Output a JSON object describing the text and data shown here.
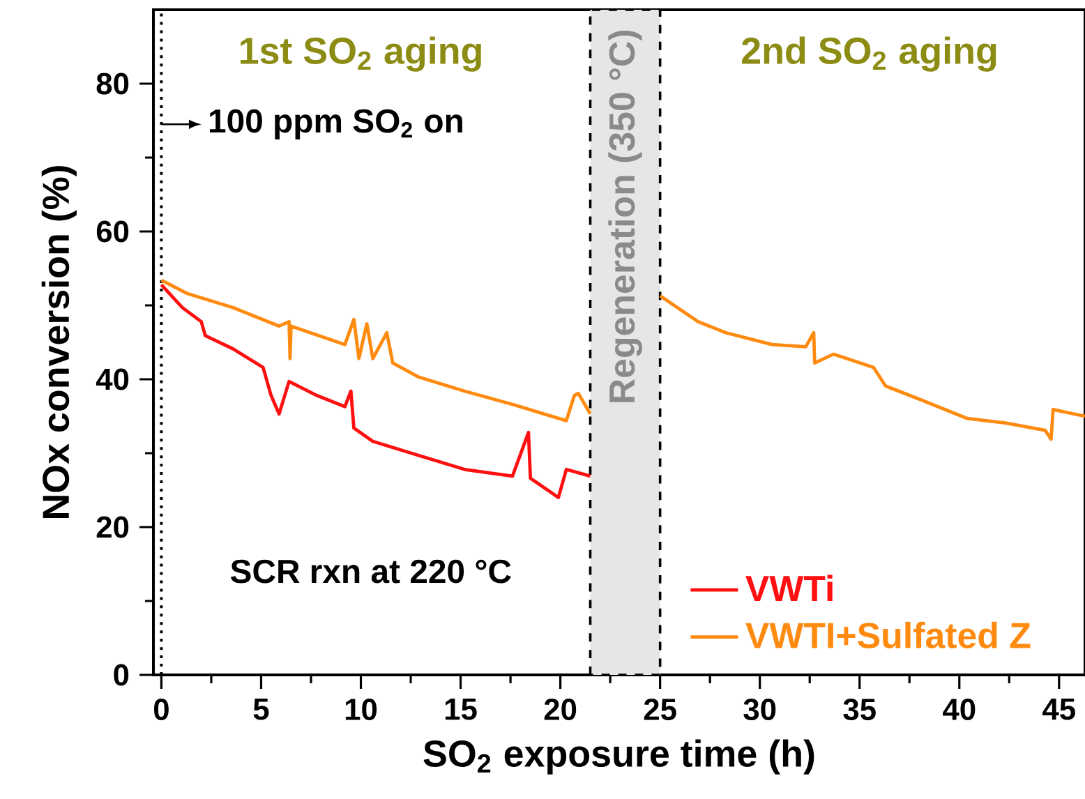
{
  "chart_data": {
    "type": "line",
    "xlabel": "SO$_{2}$ exposure time (h)",
    "ylabel": "NOx conversion (%)",
    "xlim": [
      -0.4,
      46.3
    ],
    "ylim": [
      0,
      90
    ],
    "xticks": [
      0,
      5,
      10,
      15,
      20,
      25,
      30,
      35,
      40,
      45
    ],
    "yticks": [
      0,
      20,
      40,
      60,
      80
    ],
    "marker": "none",
    "legend": "bottom right",
    "series": [
      {
        "name": "VWTi",
        "color": "#ff1010",
        "x": [
          0,
          1.05,
          2.0,
          2.2,
          3.6,
          5.1,
          5.5,
          5.9,
          6.4,
          7.8,
          9.2,
          9.5,
          9.65,
          10.6,
          12.9,
          15.2,
          17.6,
          18.4,
          18.5,
          19.9,
          20.3,
          21.5
        ],
        "values": [
          52.8,
          49.7,
          47.8,
          45.9,
          44.1,
          41.6,
          37.8,
          35.3,
          39.7,
          37.8,
          36.3,
          38.4,
          33.4,
          31.6,
          29.7,
          27.8,
          26.9,
          32.8,
          26.6,
          24,
          27.8,
          26.9
        ]
      },
      {
        "name": "VWTI+Sulfated Z",
        "color": "#ff8a10",
        "x": [
          0,
          1.3,
          3.6,
          5.9,
          6.4,
          6.45,
          6.5,
          9.2,
          9.65,
          9.9,
          10.3,
          10.6,
          11.3,
          11.6,
          12.9,
          15.2,
          17.6,
          20.3,
          20.7,
          20.9,
          21.5,
          23.25,
          25.0,
          26.9,
          28.3,
          30.6,
          32.3,
          32.7,
          32.75,
          33.7,
          35.7,
          36.3,
          38.1,
          40.4,
          42.3,
          44.3,
          44.6,
          44.7,
          46.3
        ],
        "values": [
          53.4,
          51.6,
          49.7,
          47.2,
          47.8,
          42.8,
          47.2,
          44.7,
          48.1,
          42.8,
          47.5,
          42.8,
          46.3,
          42.2,
          40.3,
          38.4,
          36.6,
          34.4,
          37.8,
          38.1,
          35.3,
          null,
          51.3,
          47.8,
          46.3,
          44.7,
          44.4,
          46.3,
          42.2,
          43.4,
          41.6,
          39.1,
          37.2,
          34.7,
          34.1,
          33.1,
          31.9,
          35.9,
          35.0
        ]
      }
    ],
    "bands": [
      {
        "axis": "x",
        "from": 21.5,
        "to": 25,
        "label": "Regeneration (350 °C)",
        "color": "#e6e6e6"
      }
    ],
    "ref_lines": [
      {
        "axis": "x",
        "value": 0,
        "label": "100 ppm SO$_{2}$ on",
        "line_style": "dotted",
        "color": "#000000"
      }
    ],
    "annotations": [
      "1st SO$_{2}$ aging",
      "2nd SO$_{2}$ aging",
      "SCR rxn at 220 °C"
    ]
  }
}
